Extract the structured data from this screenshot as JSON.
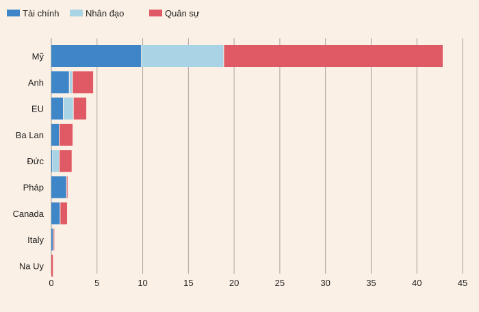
{
  "chart_data": {
    "type": "bar",
    "orientation": "horizontal",
    "stacked": true,
    "title": "",
    "xlabel": "",
    "ylabel": "",
    "xlim": [
      0,
      45
    ],
    "xticks": [
      0,
      5,
      10,
      15,
      20,
      25,
      30,
      35,
      40,
      45
    ],
    "grid": true,
    "legend_position": "top-left",
    "categories": [
      "Mỹ",
      "Anh",
      "EU",
      "Ba Lan",
      "Đức",
      "Pháp",
      "Canada",
      "Italy",
      "Na Uy"
    ],
    "series": [
      {
        "name": "Tài chính",
        "color": "#3f86c8",
        "values": [
          9.9,
          2.0,
          1.35,
          0.9,
          0.1,
          1.7,
          1.0,
          0.25,
          0
        ]
      },
      {
        "name": "Nhân đạo",
        "color": "#a8d4e6",
        "values": [
          9.0,
          0.35,
          1.1,
          0,
          0.8,
          0,
          0,
          0,
          0
        ]
      },
      {
        "name": "Quân sự",
        "color": "#e05a66",
        "values": [
          24.0,
          2.3,
          1.45,
          1.5,
          1.4,
          0.1,
          0.8,
          0.15,
          0.25
        ]
      }
    ]
  }
}
